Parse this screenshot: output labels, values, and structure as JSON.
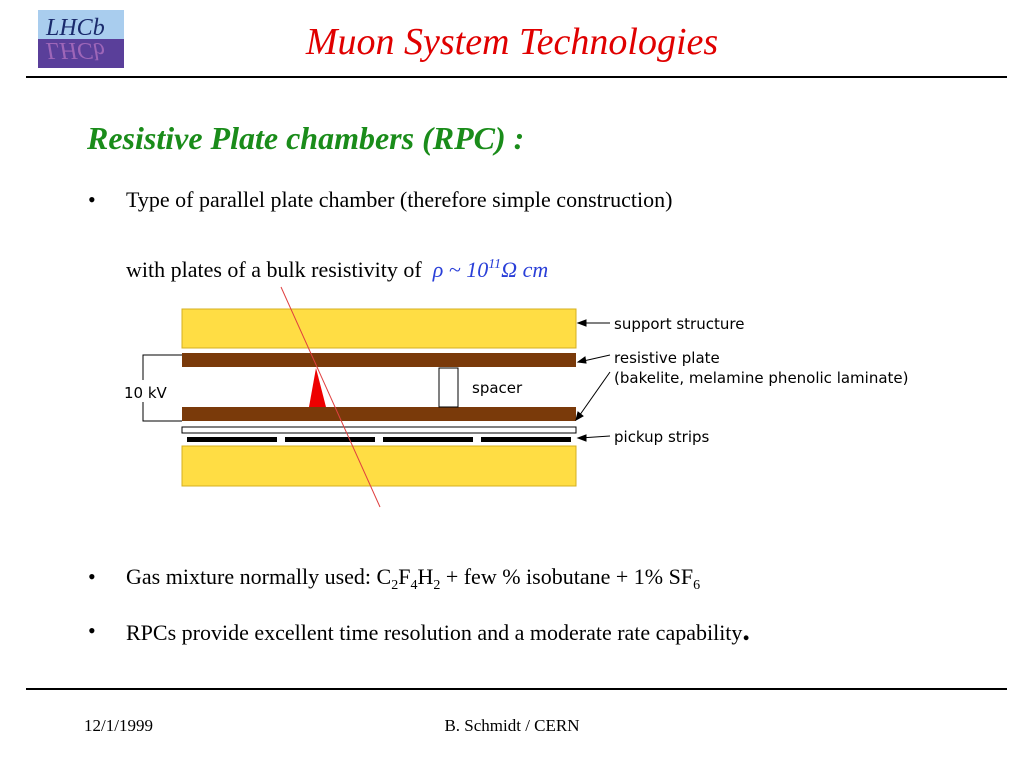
{
  "logo": {
    "text_top": "LHCb",
    "text_mirror": "LHCb"
  },
  "title": "Muon System Technologies",
  "section_heading": "Resistive Plate chambers (RPC) :",
  "bullets": {
    "b1_text": "Type of parallel plate chamber (therefore simple construction)",
    "b1_cont": "with plates of a bulk resistivity of",
    "formula_rho": "ρ ~ 10",
    "formula_exp": "11",
    "formula_unit": "Ω cm",
    "b2_prefix": "Gas mixture normally used: C",
    "b2_s1": "2",
    "b2_f": "F",
    "b2_s2": "4",
    "b2_h": "H",
    "b2_s3": "2",
    "b2_mid": " + few % isobutane + 1% SF",
    "b2_s4": "6",
    "b3_text": "RPCs provide excellent time resolution and a moderate rate capability",
    "b3_end": ".",
    "bullet_glyph": "•"
  },
  "diagram": {
    "voltage_label": "10 kV",
    "spacer_label": "spacer",
    "support_label": "support structure",
    "resistive_label": "resistive plate",
    "resistive_detail": "(bakelite, melamine phenolic laminate)",
    "pickup_label": "pickup strips",
    "colors": {
      "support": "#ffdd44",
      "resistive": "#7a3a0a",
      "avalanche": "#ee0000",
      "track": "#e04040"
    }
  },
  "footer": {
    "date": "12/1/1999",
    "author": "B. Schmidt / CERN"
  }
}
